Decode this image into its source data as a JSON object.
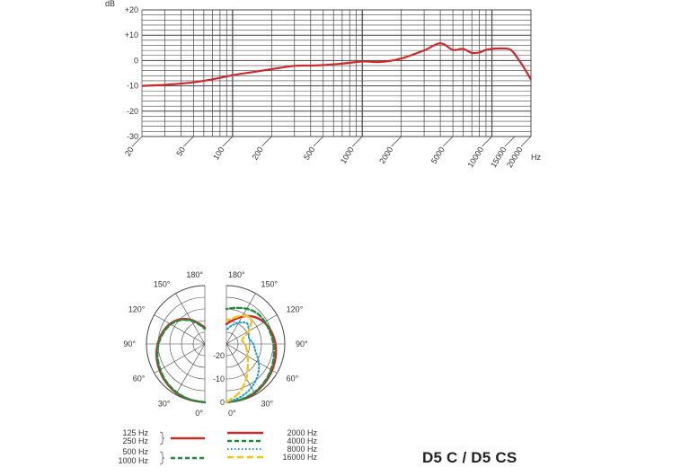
{
  "model": "D5 C / D5 CS",
  "colors": {
    "response": "#cc2a2a",
    "grid": "#444444",
    "series_red": "#cc2a2a",
    "series_green": "#1e8c3c",
    "series_blue": "#1aa0e0",
    "series_yellow": "#f2c418"
  },
  "chart_data": [
    {
      "type": "line",
      "title": "",
      "xlabel": "",
      "ylabel": "dB",
      "x_unit": "Hz",
      "x_scale": "log",
      "xlim": [
        20,
        20000
      ],
      "ylim": [
        -30,
        20
      ],
      "grid": true,
      "y_tick_labels": [
        "+20",
        "+10",
        "0",
        "-10",
        "-20",
        "-30"
      ],
      "y_tick_values": [
        20,
        10,
        0,
        -10,
        -20,
        -30
      ],
      "x_tick_labels": [
        "20",
        "50",
        "100",
        "200",
        "500",
        "1000",
        "2000",
        "5000",
        "10000",
        "15000",
        "20000"
      ],
      "x_tick_values": [
        20,
        50,
        100,
        200,
        500,
        1000,
        2000,
        5000,
        10000,
        15000,
        20000
      ],
      "series": [
        {
          "x": [
            20,
            30,
            50,
            70,
            100,
            150,
            200,
            300,
            400,
            500,
            700,
            1000,
            1300,
            1600,
            2000,
            3000,
            4000,
            5000,
            6000,
            7000,
            8000,
            9000,
            10000,
            12000,
            14000,
            16000,
            18000,
            20000
          ],
          "y": [
            -10,
            -9.6,
            -8.6,
            -7.4,
            -5.8,
            -4.4,
            -3.4,
            -2.1,
            -2.0,
            -1.8,
            -1.2,
            -0.4,
            -0.6,
            -0.2,
            0.8,
            4.0,
            6.8,
            4.2,
            4.6,
            3.0,
            3.2,
            4.2,
            4.6,
            4.8,
            4.2,
            0.5,
            -3.5,
            -7.5
          ]
        }
      ]
    },
    {
      "type": "polar",
      "angle_labels_left": [
        "180°",
        "150°",
        "120°",
        "90°",
        "60°",
        "30°",
        "0°"
      ],
      "angle_labels_right": [
        "180°",
        "150°",
        "120°",
        "90°",
        "60°",
        "30°",
        "0°"
      ],
      "radial_labels": [
        "-20",
        "-10",
        "0"
      ],
      "radial_values": [
        -20,
        -10,
        0
      ],
      "rlim": [
        -25,
        0
      ],
      "legend_left": [
        {
          "labels": [
            "125 Hz",
            "250 Hz"
          ],
          "color": "red",
          "style": "solid"
        },
        {
          "labels": [
            "500 Hz",
            "1000 Hz"
          ],
          "color": "green",
          "style": "dash"
        }
      ],
      "legend_right": [
        {
          "label": "2000 Hz",
          "color": "red",
          "style": "solid"
        },
        {
          "label": "4000 Hz",
          "color": "green",
          "style": "dash"
        },
        {
          "label": "8000 Hz",
          "color": "blue",
          "style": "dot"
        },
        {
          "label": "16000 Hz",
          "color": "yellow",
          "style": "longdash"
        }
      ],
      "series": [
        {
          "side": "left",
          "color": "red",
          "style": "solid",
          "angles": [
            0,
            15,
            30,
            45,
            60,
            75,
            90,
            105,
            120,
            135,
            150,
            165,
            180
          ],
          "values": [
            0,
            -0.3,
            -0.8,
            -1.6,
            -2.6,
            -3.6,
            -4.8,
            -6.2,
            -7.8,
            -10.0,
            -13.0,
            -16.0,
            -18.0
          ]
        },
        {
          "side": "left",
          "color": "green",
          "style": "dash",
          "angles": [
            0,
            15,
            30,
            45,
            60,
            75,
            90,
            105,
            120,
            135,
            150,
            165,
            180
          ],
          "values": [
            0,
            -0.4,
            -1.0,
            -1.9,
            -3.0,
            -4.0,
            -5.2,
            -6.6,
            -8.2,
            -10.5,
            -13.5,
            -16.5,
            -18.5
          ]
        },
        {
          "side": "right",
          "color": "red",
          "style": "solid",
          "angles": [
            0,
            15,
            30,
            45,
            60,
            75,
            90,
            105,
            120,
            135,
            150,
            165,
            180
          ],
          "values": [
            0,
            -0.3,
            -0.8,
            -1.6,
            -2.4,
            -3.2,
            -4.0,
            -5.0,
            -6.4,
            -8.5,
            -11.5,
            -14.5,
            -16.5
          ]
        },
        {
          "side": "right",
          "color": "green",
          "style": "dash",
          "angles": [
            0,
            15,
            30,
            45,
            60,
            75,
            90,
            105,
            120,
            135,
            150,
            165,
            180
          ],
          "values": [
            0,
            -0.4,
            -1.1,
            -2.0,
            -3.0,
            -4.0,
            -4.9,
            -5.6,
            -6.0,
            -6.4,
            -7.6,
            -9.0,
            -10.0
          ]
        },
        {
          "side": "right",
          "color": "blue",
          "style": "dot",
          "angles": [
            0,
            15,
            30,
            45,
            60,
            75,
            90,
            105,
            120,
            135,
            150,
            165,
            180
          ],
          "values": [
            0,
            -1.5,
            -3.5,
            -6.0,
            -9.0,
            -12.0,
            -13.5,
            -15.0,
            -14.0,
            -12.5,
            -14.5,
            -17.0,
            -19.0
          ]
        },
        {
          "side": "right",
          "color": "yellow",
          "style": "longdash",
          "angles": [
            0,
            15,
            30,
            45,
            60,
            75,
            90,
            105,
            120,
            135,
            150,
            165,
            180
          ],
          "values": [
            0,
            -3.5,
            -8.0,
            -12.0,
            -14.5,
            -16.0,
            -17.0,
            -18.0,
            -14.0,
            -10.0,
            -11.0,
            -13.5,
            -15.0
          ]
        }
      ]
    }
  ]
}
